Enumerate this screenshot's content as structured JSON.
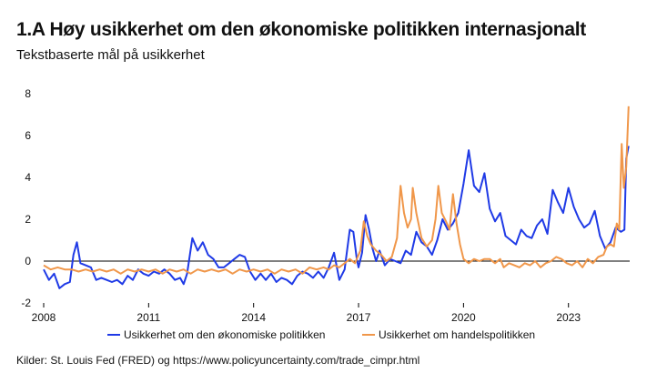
{
  "chart_data": {
    "type": "line",
    "title": "1.A Høy usikkerhet om den økonomiske politikken internasjonalt",
    "subtitle": "Tekstbaserte mål på usikkerhet",
    "source": "Kilder: St. Louis Fed (FRED) og https://www.policyuncertainty.com/trade_cimpr.html",
    "xlim": [
      2008,
      2024.75
    ],
    "ylim": [
      -2,
      8
    ],
    "y_ticks": [
      "8",
      "6",
      "4",
      "2",
      "0",
      "-2"
    ],
    "y_tick_values": [
      8,
      6,
      4,
      2,
      0,
      -2
    ],
    "x_ticks": [
      "2008",
      "2011",
      "2014",
      "2017",
      "2020",
      "2023"
    ],
    "x_tick_values": [
      2008,
      2011,
      2014,
      2017,
      2020,
      2023
    ],
    "legend_position": "bottom",
    "colors": {
      "econ": "#1f3ae6",
      "trade": "#f0974a",
      "axis": "#000000"
    },
    "series": [
      {
        "name": "Usikkerhet om den økonomiske politikken",
        "color": "#1f3ae6",
        "points": [
          [
            2008.0,
            -0.4
          ],
          [
            2008.15,
            -0.9
          ],
          [
            2008.3,
            -0.6
          ],
          [
            2008.45,
            -1.3
          ],
          [
            2008.6,
            -1.1
          ],
          [
            2008.75,
            -1.0
          ],
          [
            2008.85,
            0.3
          ],
          [
            2008.95,
            0.9
          ],
          [
            2009.05,
            -0.1
          ],
          [
            2009.2,
            -0.2
          ],
          [
            2009.35,
            -0.3
          ],
          [
            2009.5,
            -0.9
          ],
          [
            2009.65,
            -0.8
          ],
          [
            2009.8,
            -0.9
          ],
          [
            2009.95,
            -1.0
          ],
          [
            2010.1,
            -0.9
          ],
          [
            2010.25,
            -1.1
          ],
          [
            2010.4,
            -0.7
          ],
          [
            2010.55,
            -0.9
          ],
          [
            2010.7,
            -0.4
          ],
          [
            2010.85,
            -0.6
          ],
          [
            2011.0,
            -0.7
          ],
          [
            2011.15,
            -0.5
          ],
          [
            2011.3,
            -0.6
          ],
          [
            2011.45,
            -0.4
          ],
          [
            2011.6,
            -0.6
          ],
          [
            2011.75,
            -0.9
          ],
          [
            2011.9,
            -0.8
          ],
          [
            2012.0,
            -1.1
          ],
          [
            2012.1,
            -0.6
          ],
          [
            2012.25,
            1.1
          ],
          [
            2012.4,
            0.5
          ],
          [
            2012.55,
            0.9
          ],
          [
            2012.7,
            0.3
          ],
          [
            2012.85,
            0.1
          ],
          [
            2013.0,
            -0.3
          ],
          [
            2013.15,
            -0.3
          ],
          [
            2013.3,
            -0.1
          ],
          [
            2013.45,
            0.1
          ],
          [
            2013.6,
            0.3
          ],
          [
            2013.75,
            0.2
          ],
          [
            2013.9,
            -0.5
          ],
          [
            2014.05,
            -0.9
          ],
          [
            2014.2,
            -0.6
          ],
          [
            2014.35,
            -0.9
          ],
          [
            2014.5,
            -0.6
          ],
          [
            2014.65,
            -1.0
          ],
          [
            2014.8,
            -0.8
          ],
          [
            2014.95,
            -0.9
          ],
          [
            2015.1,
            -1.1
          ],
          [
            2015.25,
            -0.7
          ],
          [
            2015.4,
            -0.5
          ],
          [
            2015.55,
            -0.6
          ],
          [
            2015.7,
            -0.8
          ],
          [
            2015.85,
            -0.5
          ],
          [
            2016.0,
            -0.8
          ],
          [
            2016.15,
            -0.3
          ],
          [
            2016.3,
            0.4
          ],
          [
            2016.45,
            -0.9
          ],
          [
            2016.6,
            -0.4
          ],
          [
            2016.75,
            1.5
          ],
          [
            2016.85,
            1.4
          ],
          [
            2016.95,
            0.1
          ],
          [
            2017.0,
            -0.3
          ],
          [
            2017.1,
            0.4
          ],
          [
            2017.2,
            2.2
          ],
          [
            2017.3,
            1.5
          ],
          [
            2017.4,
            0.6
          ],
          [
            2017.5,
            0.0
          ],
          [
            2017.6,
            0.5
          ],
          [
            2017.75,
            -0.2
          ],
          [
            2017.9,
            0.1
          ],
          [
            2018.05,
            0.0
          ],
          [
            2018.2,
            -0.1
          ],
          [
            2018.35,
            0.5
          ],
          [
            2018.5,
            0.3
          ],
          [
            2018.65,
            1.4
          ],
          [
            2018.8,
            0.9
          ],
          [
            2018.95,
            0.7
          ],
          [
            2019.1,
            0.3
          ],
          [
            2019.25,
            1.0
          ],
          [
            2019.4,
            2.0
          ],
          [
            2019.55,
            1.5
          ],
          [
            2019.7,
            1.8
          ],
          [
            2019.85,
            2.3
          ],
          [
            2020.0,
            3.7
          ],
          [
            2020.15,
            5.3
          ],
          [
            2020.3,
            3.6
          ],
          [
            2020.45,
            3.3
          ],
          [
            2020.6,
            4.2
          ],
          [
            2020.75,
            2.5
          ],
          [
            2020.9,
            1.9
          ],
          [
            2021.05,
            2.3
          ],
          [
            2021.2,
            1.2
          ],
          [
            2021.35,
            1.0
          ],
          [
            2021.5,
            0.8
          ],
          [
            2021.65,
            1.5
          ],
          [
            2021.8,
            1.2
          ],
          [
            2021.95,
            1.1
          ],
          [
            2022.1,
            1.7
          ],
          [
            2022.25,
            2.0
          ],
          [
            2022.4,
            1.3
          ],
          [
            2022.55,
            3.4
          ],
          [
            2022.7,
            2.8
          ],
          [
            2022.85,
            2.3
          ],
          [
            2023.0,
            3.5
          ],
          [
            2023.15,
            2.6
          ],
          [
            2023.3,
            2.0
          ],
          [
            2023.45,
            1.6
          ],
          [
            2023.6,
            1.8
          ],
          [
            2023.75,
            2.4
          ],
          [
            2023.9,
            1.2
          ],
          [
            2024.05,
            0.6
          ],
          [
            2024.2,
            0.9
          ],
          [
            2024.35,
            1.6
          ],
          [
            2024.5,
            1.4
          ],
          [
            2024.6,
            1.5
          ],
          [
            2024.65,
            4.9
          ],
          [
            2024.72,
            5.5
          ]
        ]
      },
      {
        "name": "Usikkerhet om handelspolitikken",
        "color": "#f0974a",
        "points": [
          [
            2008.0,
            -0.2
          ],
          [
            2008.2,
            -0.4
          ],
          [
            2008.4,
            -0.3
          ],
          [
            2008.6,
            -0.4
          ],
          [
            2008.8,
            -0.4
          ],
          [
            2009.0,
            -0.5
          ],
          [
            2009.2,
            -0.4
          ],
          [
            2009.4,
            -0.5
          ],
          [
            2009.6,
            -0.4
          ],
          [
            2009.8,
            -0.5
          ],
          [
            2010.0,
            -0.4
          ],
          [
            2010.2,
            -0.6
          ],
          [
            2010.4,
            -0.4
          ],
          [
            2010.6,
            -0.5
          ],
          [
            2010.8,
            -0.4
          ],
          [
            2011.0,
            -0.5
          ],
          [
            2011.2,
            -0.4
          ],
          [
            2011.4,
            -0.6
          ],
          [
            2011.6,
            -0.4
          ],
          [
            2011.8,
            -0.5
          ],
          [
            2012.0,
            -0.4
          ],
          [
            2012.2,
            -0.6
          ],
          [
            2012.4,
            -0.4
          ],
          [
            2012.6,
            -0.5
          ],
          [
            2012.8,
            -0.4
          ],
          [
            2013.0,
            -0.5
          ],
          [
            2013.2,
            -0.4
          ],
          [
            2013.4,
            -0.6
          ],
          [
            2013.6,
            -0.4
          ],
          [
            2013.8,
            -0.5
          ],
          [
            2014.0,
            -0.4
          ],
          [
            2014.2,
            -0.5
          ],
          [
            2014.4,
            -0.4
          ],
          [
            2014.6,
            -0.6
          ],
          [
            2014.8,
            -0.4
          ],
          [
            2015.0,
            -0.5
          ],
          [
            2015.2,
            -0.4
          ],
          [
            2015.4,
            -0.6
          ],
          [
            2015.6,
            -0.3
          ],
          [
            2015.8,
            -0.4
          ],
          [
            2016.0,
            -0.3
          ],
          [
            2016.15,
            -0.4
          ],
          [
            2016.3,
            -0.2
          ],
          [
            2016.45,
            -0.3
          ],
          [
            2016.6,
            -0.1
          ],
          [
            2016.75,
            0.1
          ],
          [
            2016.9,
            -0.1
          ],
          [
            2017.05,
            0.5
          ],
          [
            2017.15,
            1.9
          ],
          [
            2017.25,
            1.2
          ],
          [
            2017.35,
            0.8
          ],
          [
            2017.5,
            0.5
          ],
          [
            2017.65,
            0.3
          ],
          [
            2017.8,
            0.0
          ],
          [
            2017.95,
            0.2
          ],
          [
            2018.1,
            1.1
          ],
          [
            2018.2,
            3.6
          ],
          [
            2018.3,
            2.3
          ],
          [
            2018.4,
            1.6
          ],
          [
            2018.5,
            2.0
          ],
          [
            2018.55,
            3.5
          ],
          [
            2018.65,
            2.3
          ],
          [
            2018.8,
            1.1
          ],
          [
            2018.95,
            0.7
          ],
          [
            2019.1,
            1.0
          ],
          [
            2019.2,
            2.0
          ],
          [
            2019.28,
            3.6
          ],
          [
            2019.38,
            2.3
          ],
          [
            2019.5,
            1.9
          ],
          [
            2019.6,
            1.5
          ],
          [
            2019.7,
            3.2
          ],
          [
            2019.8,
            1.8
          ],
          [
            2019.9,
            0.8
          ],
          [
            2020.0,
            0.1
          ],
          [
            2020.15,
            -0.1
          ],
          [
            2020.3,
            0.1
          ],
          [
            2020.45,
            0.0
          ],
          [
            2020.6,
            0.1
          ],
          [
            2020.75,
            0.1
          ],
          [
            2020.9,
            -0.1
          ],
          [
            2021.05,
            0.1
          ],
          [
            2021.15,
            -0.3
          ],
          [
            2021.3,
            -0.1
          ],
          [
            2021.45,
            -0.2
          ],
          [
            2021.6,
            -0.3
          ],
          [
            2021.75,
            -0.1
          ],
          [
            2021.9,
            -0.2
          ],
          [
            2022.05,
            0.0
          ],
          [
            2022.2,
            -0.3
          ],
          [
            2022.35,
            -0.1
          ],
          [
            2022.5,
            0.0
          ],
          [
            2022.65,
            0.2
          ],
          [
            2022.8,
            0.1
          ],
          [
            2022.95,
            -0.1
          ],
          [
            2023.1,
            -0.2
          ],
          [
            2023.25,
            0.0
          ],
          [
            2023.4,
            -0.3
          ],
          [
            2023.55,
            0.1
          ],
          [
            2023.7,
            -0.1
          ],
          [
            2023.85,
            0.2
          ],
          [
            2024.0,
            0.3
          ],
          [
            2024.1,
            0.7
          ],
          [
            2024.2,
            0.8
          ],
          [
            2024.3,
            0.7
          ],
          [
            2024.38,
            1.8
          ],
          [
            2024.45,
            1.5
          ],
          [
            2024.52,
            5.6
          ],
          [
            2024.58,
            3.5
          ],
          [
            2024.65,
            4.5
          ],
          [
            2024.72,
            7.4
          ]
        ]
      }
    ]
  }
}
